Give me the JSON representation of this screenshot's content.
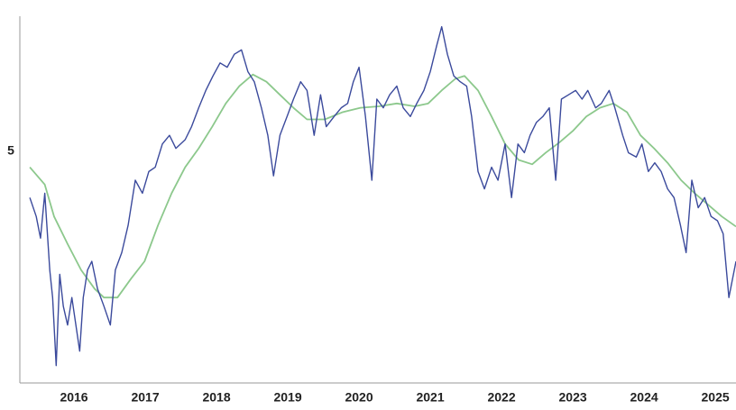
{
  "chart_data": {
    "type": "line",
    "xlim": [
      2015.24,
      2025.29
    ],
    "xticks": [
      2016,
      2017,
      2018,
      2019,
      2020,
      2021,
      2022,
      2023,
      2024,
      2025
    ],
    "ylim": [
      3.4,
      5.92
    ],
    "yticks": [
      5
    ],
    "grid": false,
    "series": [
      {
        "color": "#3b4a9c",
        "x": [
          2015.38,
          2015.47,
          2015.53,
          2015.59,
          2015.66,
          2015.7,
          2015.75,
          2015.8,
          2015.85,
          2015.91,
          2015.97,
          2016.08,
          2016.13,
          2016.19,
          2016.25,
          2016.33,
          2016.42,
          2016.51,
          2016.58,
          2016.67,
          2016.76,
          2016.86,
          2016.96,
          2017.05,
          2017.14,
          2017.24,
          2017.34,
          2017.43,
          2017.56,
          2017.65,
          2017.75,
          2017.85,
          2017.95,
          2018.05,
          2018.15,
          2018.25,
          2018.35,
          2018.44,
          2018.53,
          2018.63,
          2018.72,
          2018.8,
          2018.89,
          2018.99,
          2019.08,
          2019.18,
          2019.27,
          2019.37,
          2019.46,
          2019.54,
          2019.65,
          2019.75,
          2019.84,
          2019.92,
          2020.0,
          2020.09,
          2020.18,
          2020.25,
          2020.34,
          2020.43,
          2020.53,
          2020.62,
          2020.72,
          2020.81,
          2020.91,
          2021.0,
          2021.09,
          2021.16,
          2021.24,
          2021.33,
          2021.42,
          2021.51,
          2021.58,
          2021.67,
          2021.76,
          2021.86,
          2021.95,
          2022.05,
          2022.14,
          2022.23,
          2022.32,
          2022.4,
          2022.49,
          2022.58,
          2022.67,
          2022.76,
          2022.84,
          2022.94,
          2023.04,
          2023.13,
          2023.21,
          2023.32,
          2023.4,
          2023.51,
          2023.59,
          2023.7,
          2023.78,
          2023.89,
          2023.97,
          2024.06,
          2024.15,
          2024.24,
          2024.33,
          2024.42,
          2024.51,
          2024.59,
          2024.67,
          2024.76,
          2024.85,
          2024.94,
          2025.03,
          2025.11,
          2025.19,
          2025.29
        ],
        "values": [
          4.68,
          4.55,
          4.4,
          4.71,
          4.18,
          3.99,
          3.52,
          4.15,
          3.93,
          3.8,
          3.99,
          3.62,
          3.99,
          4.18,
          4.24,
          4.05,
          3.93,
          3.8,
          4.18,
          4.3,
          4.49,
          4.8,
          4.71,
          4.86,
          4.89,
          5.05,
          5.11,
          5.02,
          5.08,
          5.17,
          5.3,
          5.42,
          5.52,
          5.61,
          5.58,
          5.67,
          5.7,
          5.55,
          5.48,
          5.3,
          5.11,
          4.83,
          5.11,
          5.24,
          5.36,
          5.48,
          5.42,
          5.11,
          5.39,
          5.17,
          5.24,
          5.3,
          5.33,
          5.48,
          5.58,
          5.24,
          4.8,
          5.36,
          5.3,
          5.39,
          5.45,
          5.3,
          5.24,
          5.33,
          5.42,
          5.55,
          5.73,
          5.86,
          5.67,
          5.52,
          5.48,
          5.45,
          5.24,
          4.86,
          4.74,
          4.89,
          4.8,
          5.05,
          4.68,
          5.05,
          4.99,
          5.11,
          5.2,
          5.24,
          5.3,
          4.8,
          5.36,
          5.39,
          5.42,
          5.36,
          5.42,
          5.3,
          5.33,
          5.42,
          5.3,
          5.11,
          4.99,
          4.96,
          5.05,
          4.86,
          4.92,
          4.86,
          4.74,
          4.68,
          4.49,
          4.3,
          4.8,
          4.61,
          4.68,
          4.55,
          4.52,
          4.43,
          3.99,
          4.24
        ]
      },
      {
        "color": "#8cc88c",
        "x": [
          2015.38,
          2015.59,
          2015.72,
          2015.91,
          2016.1,
          2016.29,
          2016.42,
          2016.61,
          2016.8,
          2016.99,
          2017.18,
          2017.37,
          2017.56,
          2017.75,
          2017.94,
          2018.13,
          2018.32,
          2018.51,
          2018.7,
          2018.89,
          2019.08,
          2019.27,
          2019.52,
          2019.77,
          2020.02,
          2020.28,
          2020.53,
          2020.78,
          2020.97,
          2021.16,
          2021.35,
          2021.48,
          2021.67,
          2021.86,
          2022.05,
          2022.24,
          2022.43,
          2022.62,
          2022.81,
          2023.0,
          2023.19,
          2023.38,
          2023.57,
          2023.76,
          2023.95,
          2024.14,
          2024.33,
          2024.52,
          2024.71,
          2024.9,
          2025.09,
          2025.29
        ],
        "values": [
          4.89,
          4.77,
          4.55,
          4.36,
          4.18,
          4.05,
          3.99,
          3.99,
          4.12,
          4.24,
          4.49,
          4.71,
          4.89,
          5.02,
          5.17,
          5.33,
          5.45,
          5.53,
          5.48,
          5.39,
          5.3,
          5.22,
          5.22,
          5.27,
          5.3,
          5.31,
          5.33,
          5.31,
          5.33,
          5.42,
          5.5,
          5.52,
          5.42,
          5.24,
          5.05,
          4.94,
          4.91,
          4.99,
          5.06,
          5.14,
          5.24,
          5.3,
          5.33,
          5.27,
          5.11,
          5.02,
          4.92,
          4.8,
          4.71,
          4.63,
          4.55,
          4.48
        ]
      }
    ]
  }
}
